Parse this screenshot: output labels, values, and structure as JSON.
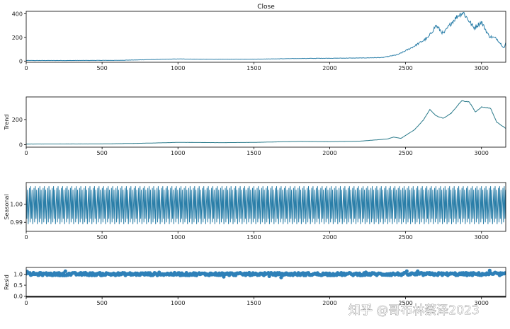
{
  "chart_data": [
    {
      "type": "line",
      "title": "Close",
      "ylabel": "",
      "xlim": [
        0,
        3160
      ],
      "ylim": [
        -10,
        420
      ],
      "xticks": [
        0,
        500,
        1000,
        1500,
        2000,
        2500,
        3000
      ],
      "yticks": [
        0,
        200,
        400
      ],
      "color": "#2a7ea8",
      "x": [
        0,
        300,
        600,
        800,
        1000,
        1200,
        1500,
        1800,
        2000,
        2200,
        2350,
        2450,
        2550,
        2650,
        2700,
        2750,
        2800,
        2850,
        2880,
        2950,
        3000,
        3050,
        3100,
        3150,
        3160
      ],
      "y": [
        5,
        5,
        6,
        12,
        18,
        15,
        16,
        22,
        24,
        26,
        30,
        55,
        120,
        200,
        300,
        230,
        320,
        390,
        410,
        280,
        330,
        210,
        190,
        110,
        150
      ]
    },
    {
      "type": "line",
      "title": "",
      "ylabel": "Trend",
      "xlim": [
        0,
        3160
      ],
      "ylim": [
        -20,
        380
      ],
      "xticks": [
        0,
        500,
        1000,
        1500,
        2000,
        2500,
        3000
      ],
      "yticks": [
        0,
        200
      ],
      "color": "#2a7a8a",
      "x": [
        0,
        500,
        800,
        1000,
        1300,
        1500,
        1800,
        2000,
        2200,
        2380,
        2420,
        2470,
        2560,
        2620,
        2660,
        2700,
        2750,
        2800,
        2870,
        2920,
        2960,
        3000,
        3060,
        3100,
        3160
      ],
      "y": [
        5,
        6,
        12,
        18,
        16,
        18,
        26,
        24,
        28,
        45,
        60,
        50,
        120,
        200,
        280,
        230,
        210,
        250,
        350,
        340,
        260,
        300,
        290,
        180,
        130
      ]
    },
    {
      "type": "line",
      "title": "",
      "ylabel": "Seasonal",
      "xlim": [
        0,
        3160
      ],
      "ylim": [
        0.985,
        1.012
      ],
      "xticks": [
        0,
        500,
        1000,
        1500,
        2000,
        2500,
        3000
      ],
      "yticks": [
        0.99,
        1.0
      ],
      "yticklabels": [
        "0.99",
        "1.00"
      ],
      "color": "#2a7ea8",
      "period": 30,
      "amplitude_range": [
        0.989,
        1.01
      ]
    },
    {
      "type": "scatter",
      "title": "",
      "ylabel": "Resid",
      "xlim": [
        0,
        3160
      ],
      "ylim": [
        -0.04,
        1.3
      ],
      "xticks": [
        0,
        500,
        1000,
        1500,
        2000,
        2500,
        3000
      ],
      "yticks": [
        0.0,
        0.5,
        1.0
      ],
      "yticklabels": [
        "0.0",
        "0.5",
        "1.0"
      ],
      "color": "#2e80b8",
      "baseline": 0.0,
      "center": 1.0,
      "spread": 0.06
    }
  ],
  "watermark": "知乎 @哥布林蔡泽2023"
}
